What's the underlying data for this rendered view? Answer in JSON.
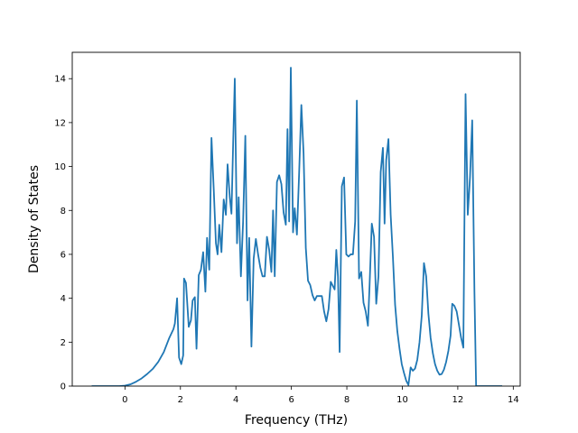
{
  "chart_data": {
    "type": "line",
    "title": "",
    "xlabel": "Frequency (THz)",
    "ylabel": "Density of States",
    "xlim": [
      -1.9,
      14.25
    ],
    "ylim": [
      0,
      15.2
    ],
    "xticks": [
      0,
      2,
      4,
      6,
      8,
      10,
      12,
      14
    ],
    "yticks": [
      0,
      2,
      4,
      6,
      8,
      10,
      12,
      14
    ],
    "grid": false,
    "line_color": "#1f77b4",
    "series": [
      {
        "name": "",
        "points": [
          [
            -1.2,
            0.0
          ],
          [
            -0.6,
            0.0
          ],
          [
            -0.2,
            0.0
          ],
          [
            0.0,
            0.02
          ],
          [
            0.2,
            0.08
          ],
          [
            0.4,
            0.2
          ],
          [
            0.6,
            0.35
          ],
          [
            0.8,
            0.55
          ],
          [
            1.0,
            0.78
          ],
          [
            1.2,
            1.1
          ],
          [
            1.4,
            1.55
          ],
          [
            1.6,
            2.2
          ],
          [
            1.75,
            2.6
          ],
          [
            1.8,
            2.85
          ],
          [
            1.88,
            4.0
          ],
          [
            1.95,
            1.3
          ],
          [
            2.03,
            1.0
          ],
          [
            2.1,
            1.4
          ],
          [
            2.13,
            4.9
          ],
          [
            2.2,
            4.7
          ],
          [
            2.3,
            2.7
          ],
          [
            2.38,
            3.0
          ],
          [
            2.44,
            3.9
          ],
          [
            2.52,
            4.05
          ],
          [
            2.58,
            1.7
          ],
          [
            2.66,
            5.05
          ],
          [
            2.74,
            5.3
          ],
          [
            2.82,
            6.1
          ],
          [
            2.9,
            4.3
          ],
          [
            2.96,
            6.75
          ],
          [
            3.04,
            5.3
          ],
          [
            3.12,
            11.3
          ],
          [
            3.2,
            9.0
          ],
          [
            3.28,
            6.5
          ],
          [
            3.34,
            6.0
          ],
          [
            3.4,
            7.35
          ],
          [
            3.48,
            6.1
          ],
          [
            3.56,
            8.5
          ],
          [
            3.64,
            7.8
          ],
          [
            3.7,
            10.1
          ],
          [
            3.78,
            8.6
          ],
          [
            3.84,
            7.85
          ],
          [
            3.9,
            11.0
          ],
          [
            3.96,
            14.0
          ],
          [
            4.04,
            6.5
          ],
          [
            4.1,
            8.6
          ],
          [
            4.18,
            5.0
          ],
          [
            4.26,
            7.5
          ],
          [
            4.34,
            11.4
          ],
          [
            4.42,
            3.9
          ],
          [
            4.48,
            6.75
          ],
          [
            4.56,
            1.8
          ],
          [
            4.64,
            5.8
          ],
          [
            4.72,
            6.7
          ],
          [
            4.8,
            6.0
          ],
          [
            4.88,
            5.4
          ],
          [
            4.96,
            5.0
          ],
          [
            5.04,
            5.0
          ],
          [
            5.12,
            6.8
          ],
          [
            5.2,
            6.2
          ],
          [
            5.28,
            5.2
          ],
          [
            5.34,
            8.0
          ],
          [
            5.4,
            5.0
          ],
          [
            5.48,
            9.3
          ],
          [
            5.56,
            9.6
          ],
          [
            5.64,
            9.2
          ],
          [
            5.72,
            7.9
          ],
          [
            5.8,
            7.35
          ],
          [
            5.86,
            11.7
          ],
          [
            5.92,
            7.5
          ],
          [
            5.98,
            14.5
          ],
          [
            6.06,
            7.0
          ],
          [
            6.12,
            8.1
          ],
          [
            6.2,
            6.9
          ],
          [
            6.28,
            9.7
          ],
          [
            6.36,
            12.8
          ],
          [
            6.44,
            10.6
          ],
          [
            6.52,
            6.3
          ],
          [
            6.6,
            4.8
          ],
          [
            6.68,
            4.6
          ],
          [
            6.76,
            4.15
          ],
          [
            6.84,
            3.9
          ],
          [
            6.92,
            4.1
          ],
          [
            7.0,
            4.1
          ],
          [
            7.1,
            4.1
          ],
          [
            7.18,
            3.4
          ],
          [
            7.26,
            2.95
          ],
          [
            7.34,
            3.5
          ],
          [
            7.42,
            4.75
          ],
          [
            7.5,
            4.55
          ],
          [
            7.56,
            4.4
          ],
          [
            7.62,
            6.2
          ],
          [
            7.68,
            5.0
          ],
          [
            7.74,
            1.55
          ],
          [
            7.82,
            9.1
          ],
          [
            7.9,
            9.5
          ],
          [
            7.98,
            6.0
          ],
          [
            8.06,
            5.9
          ],
          [
            8.14,
            6.0
          ],
          [
            8.22,
            6.0
          ],
          [
            8.3,
            7.5
          ],
          [
            8.36,
            13.0
          ],
          [
            8.44,
            4.9
          ],
          [
            8.52,
            5.2
          ],
          [
            8.6,
            3.8
          ],
          [
            8.68,
            3.4
          ],
          [
            8.76,
            2.75
          ],
          [
            8.82,
            4.6
          ],
          [
            8.9,
            7.4
          ],
          [
            8.98,
            6.8
          ],
          [
            9.06,
            3.75
          ],
          [
            9.14,
            5.0
          ],
          [
            9.22,
            9.75
          ],
          [
            9.3,
            10.85
          ],
          [
            9.36,
            7.4
          ],
          [
            9.42,
            10.3
          ],
          [
            9.5,
            11.25
          ],
          [
            9.58,
            7.8
          ],
          [
            9.66,
            5.9
          ],
          [
            9.74,
            3.7
          ],
          [
            9.82,
            2.5
          ],
          [
            9.9,
            1.7
          ],
          [
            9.98,
            1.0
          ],
          [
            10.06,
            0.6
          ],
          [
            10.14,
            0.25
          ],
          [
            10.22,
            0.05
          ],
          [
            10.3,
            0.85
          ],
          [
            10.38,
            0.7
          ],
          [
            10.46,
            0.8
          ],
          [
            10.54,
            1.2
          ],
          [
            10.62,
            2.0
          ],
          [
            10.7,
            3.2
          ],
          [
            10.78,
            5.6
          ],
          [
            10.86,
            5.0
          ],
          [
            10.94,
            3.3
          ],
          [
            11.02,
            2.2
          ],
          [
            11.1,
            1.5
          ],
          [
            11.18,
            1.0
          ],
          [
            11.26,
            0.7
          ],
          [
            11.34,
            0.52
          ],
          [
            11.42,
            0.55
          ],
          [
            11.5,
            0.75
          ],
          [
            11.58,
            1.1
          ],
          [
            11.66,
            1.6
          ],
          [
            11.74,
            2.3
          ],
          [
            11.8,
            3.75
          ],
          [
            11.88,
            3.65
          ],
          [
            11.96,
            3.4
          ],
          [
            12.04,
            2.8
          ],
          [
            12.12,
            2.2
          ],
          [
            12.2,
            1.75
          ],
          [
            12.28,
            13.3
          ],
          [
            12.36,
            7.8
          ],
          [
            12.44,
            9.5
          ],
          [
            12.52,
            12.1
          ],
          [
            12.6,
            4.3
          ],
          [
            12.66,
            0.0
          ],
          [
            12.9,
            0.0
          ],
          [
            13.3,
            0.0
          ],
          [
            13.6,
            0.0
          ]
        ]
      }
    ]
  }
}
